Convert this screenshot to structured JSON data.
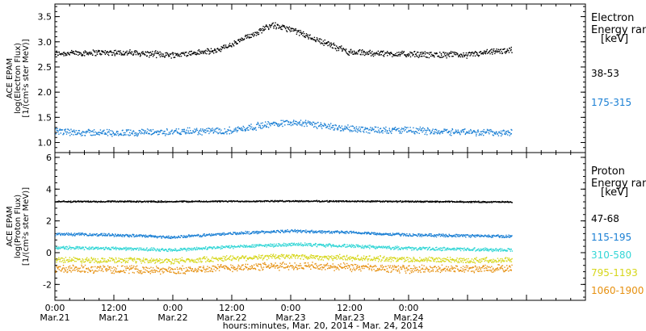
{
  "chart_data": [
    {
      "type": "scatter",
      "panel": "electron",
      "ylabel_lines": [
        "ACE EPAM",
        "log(Electron Flux)",
        "[1/(cm²s ster MeV)]"
      ],
      "ylim": [
        0.8,
        3.75
      ],
      "yticks": [
        "1.0",
        "1.5",
        "2.0",
        "2.5",
        "3.0",
        "3.5"
      ],
      "legend_title": [
        "Electron",
        "Energy ran",
        "[keV]"
      ],
      "legend_placement": "right",
      "series": [
        {
          "name": "38-53",
          "color": "#000000",
          "x_hours": [
            0,
            12,
            24,
            32,
            36,
            40,
            44,
            48,
            60,
            72,
            84,
            93
          ],
          "y": [
            2.78,
            2.8,
            2.75,
            2.82,
            2.95,
            3.15,
            3.35,
            3.25,
            2.8,
            2.76,
            2.75,
            2.85
          ]
        },
        {
          "name": "175-315",
          "color": "#1a7fd4",
          "x_hours": [
            0,
            12,
            24,
            36,
            42,
            48,
            60,
            72,
            84,
            93
          ],
          "y": [
            1.22,
            1.2,
            1.22,
            1.25,
            1.35,
            1.42,
            1.28,
            1.25,
            1.22,
            1.2
          ]
        }
      ]
    },
    {
      "type": "scatter",
      "panel": "proton",
      "ylabel_lines": [
        "ACE EPAM",
        "log(Proton Flux)",
        "[1/(cm²s ster MeV)]"
      ],
      "ylim": [
        -3,
        6.3
      ],
      "yticks": [
        "-2",
        "0",
        "2",
        "4",
        "6"
      ],
      "legend_title": [
        "Proton",
        "Energy ran",
        "[keV]"
      ],
      "legend_placement": "right",
      "series": [
        {
          "name": "47-68",
          "color": "#000000",
          "x_hours": [
            0,
            24,
            48,
            72,
            93
          ],
          "y": [
            3.25,
            3.25,
            3.28,
            3.25,
            3.22
          ]
        },
        {
          "name": "115-195",
          "color": "#1a7fd4",
          "x_hours": [
            0,
            12,
            24,
            36,
            48,
            60,
            72,
            84,
            93
          ],
          "y": [
            1.2,
            1.15,
            1.0,
            1.25,
            1.4,
            1.3,
            1.15,
            1.1,
            1.05
          ]
        },
        {
          "name": "310-580",
          "color": "#33d6d6",
          "x_hours": [
            0,
            12,
            24,
            36,
            48,
            60,
            72,
            84,
            93
          ],
          "y": [
            0.35,
            0.3,
            0.2,
            0.4,
            0.55,
            0.45,
            0.3,
            0.25,
            0.2
          ]
        },
        {
          "name": "795-1193",
          "color": "#d6d61a",
          "x_hours": [
            0,
            12,
            24,
            36,
            48,
            60,
            72,
            84,
            93
          ],
          "y": [
            -0.4,
            -0.45,
            -0.5,
            -0.3,
            -0.2,
            -0.3,
            -0.4,
            -0.45,
            -0.4
          ]
        },
        {
          "name": "1060-1900",
          "color": "#e6900f",
          "x_hours": [
            0,
            12,
            24,
            36,
            48,
            60,
            72,
            84,
            93
          ],
          "y": [
            -1.0,
            -1.0,
            -1.1,
            -0.9,
            -0.8,
            -0.9,
            -1.0,
            -1.0,
            -0.95
          ]
        }
      ]
    }
  ],
  "x_axis": {
    "range_hours": [
      0,
      108
    ],
    "ticks": [
      {
        "hour": 0,
        "time": "0:00",
        "date": "Mar.21"
      },
      {
        "hour": 12,
        "time": "12:00",
        "date": "Mar.21"
      },
      {
        "hour": 24,
        "time": "0:00",
        "date": "Mar.22"
      },
      {
        "hour": 36,
        "time": "12:00",
        "date": "Mar.22"
      },
      {
        "hour": 48,
        "time": "0:00",
        "date": "Mar.23"
      },
      {
        "hour": 60,
        "time": "12:00",
        "date": "Mar.23"
      },
      {
        "hour": 72,
        "time": "0:00",
        "date": "Mar.24"
      }
    ],
    "label": "hours:minutes, Mar. 20, 2014 - Mar. 24, 2014"
  }
}
